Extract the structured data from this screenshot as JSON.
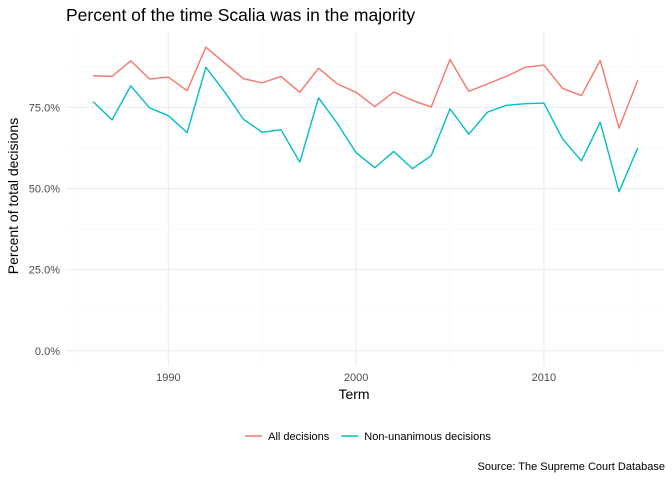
{
  "chart_data": {
    "type": "line",
    "title": "Percent of the time Scalia was in the majority",
    "xlabel": "Term",
    "ylabel": "Percent of total decisions",
    "caption": "Source: The Supreme Court Database",
    "xlim": [
      1986,
      2015
    ],
    "ylim": [
      0.0,
      0.935
    ],
    "x_ticks": [
      1990,
      2000,
      2010
    ],
    "x_tick_labels": [
      "1990",
      "2000",
      "2010"
    ],
    "y_ticks": [
      0.0,
      0.25,
      0.5,
      0.75
    ],
    "y_tick_labels": [
      "0.0%",
      "25.0%",
      "50.0%",
      "75.0%"
    ],
    "grid": true,
    "legend_position": "bottom",
    "x": [
      1986,
      1987,
      1988,
      1989,
      1990,
      1991,
      1992,
      1993,
      1994,
      1995,
      1996,
      1997,
      1998,
      1999,
      2000,
      2001,
      2002,
      2003,
      2004,
      2005,
      2006,
      2007,
      2008,
      2009,
      2010,
      2011,
      2012,
      2013,
      2014,
      2015
    ],
    "series": [
      {
        "name": "All decisions",
        "color": "#F8766D",
        "values": [
          0.847,
          0.845,
          0.893,
          0.837,
          0.843,
          0.801,
          0.935,
          0.886,
          0.838,
          0.825,
          0.845,
          0.796,
          0.87,
          0.822,
          0.796,
          0.752,
          0.797,
          0.771,
          0.751,
          0.897,
          0.799,
          0.822,
          0.845,
          0.873,
          0.88,
          0.808,
          0.786,
          0.894,
          0.686,
          0.833
        ]
      },
      {
        "name": "Non-unanimous decisions",
        "color": "#00BFC4",
        "values": [
          0.767,
          0.711,
          0.816,
          0.748,
          0.724,
          0.672,
          0.873,
          0.797,
          0.713,
          0.673,
          0.681,
          0.581,
          0.779,
          0.7,
          0.61,
          0.564,
          0.614,
          0.561,
          0.601,
          0.745,
          0.667,
          0.735,
          0.756,
          0.761,
          0.763,
          0.652,
          0.585,
          0.704,
          0.49,
          0.625
        ]
      }
    ]
  }
}
